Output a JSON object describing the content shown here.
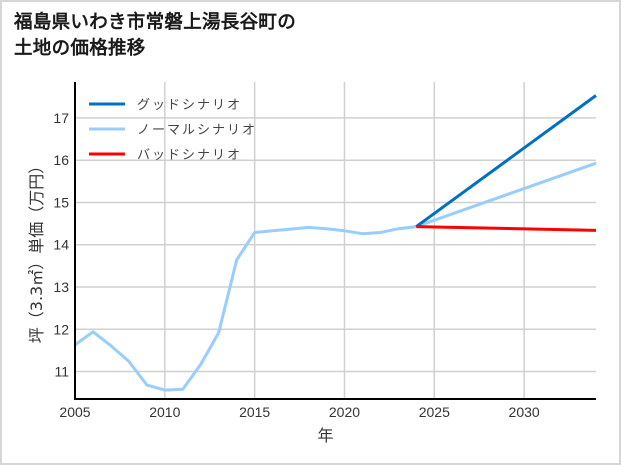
{
  "title_lines": [
    "福島県いわき市常磐上湯長谷町の",
    "土地の価格推移"
  ],
  "chart_data": {
    "type": "line",
    "title": "福島県いわき市常磐上湯長谷町の土地の価格推移",
    "xlabel": "年",
    "ylabel": "坪（3.3㎡）単価（万円）",
    "xlim": [
      2005,
      2034
    ],
    "ylim": [
      10.35,
      17.85
    ],
    "xticks": [
      2005,
      2010,
      2015,
      2020,
      2025,
      2030
    ],
    "yticks": [
      11,
      12,
      13,
      14,
      15,
      16,
      17
    ],
    "grid": true,
    "legend_position": "upper left",
    "series": [
      {
        "name": "ノーマルシナリオ",
        "color": "#99ccff",
        "x": [
          2005,
          2006,
          2007,
          2008,
          2009,
          2010,
          2011,
          2012,
          2013,
          2014,
          2015,
          2016,
          2017,
          2018,
          2019,
          2020,
          2021,
          2022,
          2023,
          2024,
          2034
        ],
        "values": [
          11.63,
          11.94,
          11.61,
          11.24,
          10.68,
          10.56,
          10.58,
          11.17,
          11.92,
          13.64,
          14.29,
          14.33,
          14.37,
          14.41,
          14.38,
          14.33,
          14.26,
          14.29,
          14.38,
          14.43,
          15.93
        ]
      },
      {
        "name": "グッドシナリオ",
        "color": "#0070c0",
        "x": [
          2024,
          2034
        ],
        "values": [
          14.43,
          17.53
        ]
      },
      {
        "name": "バッドシナリオ",
        "color": "#ff0000",
        "x": [
          2024,
          2034
        ],
        "values": [
          14.43,
          14.34
        ]
      }
    ],
    "legend_order": [
      "グッドシナリオ",
      "ノーマルシナリオ",
      "バッドシナリオ"
    ]
  }
}
